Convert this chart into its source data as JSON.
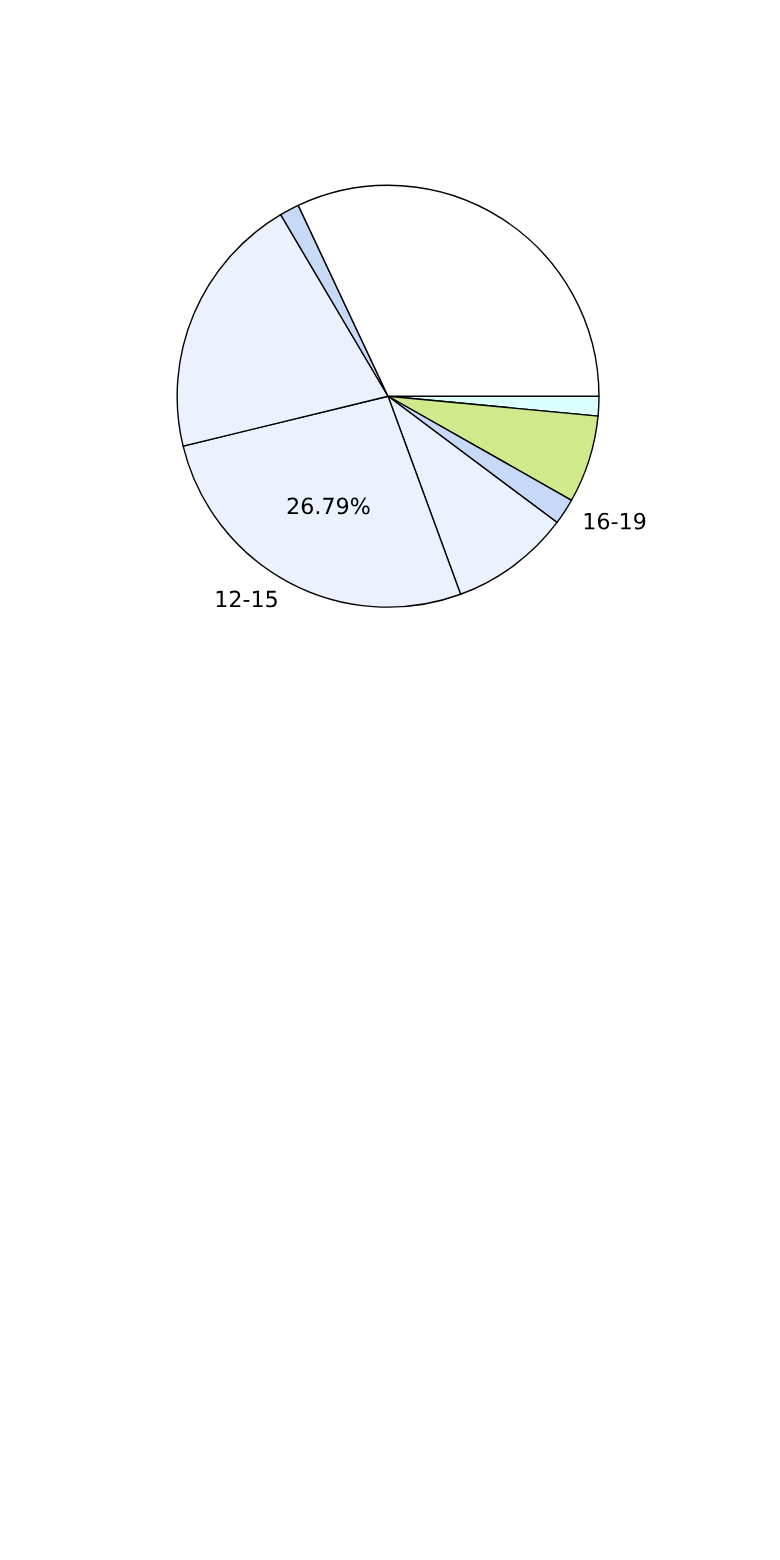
{
  "chart_data": {
    "type": "pie",
    "categories": [
      null,
      null,
      "16-19",
      null,
      "12-15",
      null,
      null,
      null
    ],
    "values": [
      1.5,
      6.71,
      2,
      9.2,
      26.79,
      20.3,
      1.5,
      32
    ],
    "colors": [
      "#dcffff",
      "#d0e98b",
      "#c6d9f7",
      "#ebf1fd",
      "#ebf1fd",
      "#ebf1fd",
      "#c6d9f7",
      "#ffffff"
    ],
    "value_labels": [
      null,
      null,
      null,
      null,
      "26.79%",
      null,
      null,
      null
    ]
  }
}
